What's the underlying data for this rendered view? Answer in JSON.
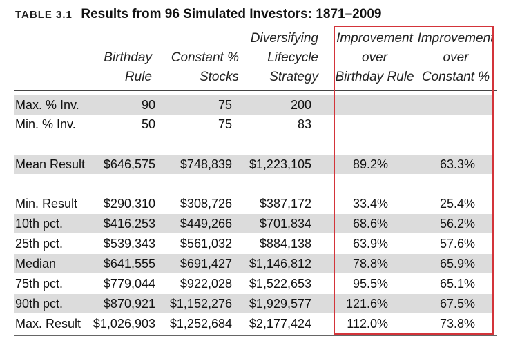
{
  "caption": {
    "label": "TABLE 3.1",
    "title": "Results from 96 Simulated Investors: 1871–2009"
  },
  "headers": {
    "birthday": [
      "Birthday",
      "Rule"
    ],
    "constant": [
      "Constant %",
      "Stocks"
    ],
    "lifecycle": [
      "Diversifying",
      "Lifecycle",
      "Strategy"
    ],
    "impr_birthday": [
      "Improvement",
      "over",
      "Birthday Rule"
    ],
    "impr_constant": [
      "Improvement",
      "over",
      "Constant %"
    ]
  },
  "rows": [
    {
      "label": "Max. % Inv.",
      "birthday": "90",
      "constant": "75",
      "lifecycle": "200",
      "impr_birthday": "",
      "impr_constant": ""
    },
    {
      "label": "Min. % Inv.",
      "birthday": "50",
      "constant": "75",
      "lifecycle": "83",
      "impr_birthday": "",
      "impr_constant": ""
    },
    {
      "label": "Mean Result",
      "birthday": "$646,575",
      "constant": "$748,839",
      "lifecycle": "$1,223,105",
      "impr_birthday": "89.2%",
      "impr_constant": "63.3%"
    },
    {
      "label": "Min. Result",
      "birthday": "$290,310",
      "constant": "$308,726",
      "lifecycle": "$387,172",
      "impr_birthday": "33.4%",
      "impr_constant": "25.4%"
    },
    {
      "label": "10th pct.",
      "birthday": "$416,253",
      "constant": "$449,266",
      "lifecycle": "$701,834",
      "impr_birthday": "68.6%",
      "impr_constant": "56.2%"
    },
    {
      "label": "25th pct.",
      "birthday": "$539,343",
      "constant": "$561,032",
      "lifecycle": "$884,138",
      "impr_birthday": "63.9%",
      "impr_constant": "57.6%"
    },
    {
      "label": "Median",
      "birthday": "$641,555",
      "constant": "$691,427",
      "lifecycle": "$1,146,812",
      "impr_birthday": "78.8%",
      "impr_constant": "65.9%"
    },
    {
      "label": "75th pct.",
      "birthday": "$779,044",
      "constant": "$922,028",
      "lifecycle": "$1,522,653",
      "impr_birthday": "95.5%",
      "impr_constant": "65.1%"
    },
    {
      "label": "90th pct.",
      "birthday": "$870,921",
      "constant": "$1,152,276",
      "lifecycle": "$1,929,577",
      "impr_birthday": "121.6%",
      "impr_constant": "67.5%"
    },
    {
      "label": "Max. Result",
      "birthday": "$1,026,903",
      "constant": "$1,252,684",
      "lifecycle": "$2,177,424",
      "impr_birthday": "112.0%",
      "impr_constant": "73.8%"
    }
  ],
  "colors": {
    "highlight_border": "#d3343a",
    "shade": "#dcdcdc"
  }
}
